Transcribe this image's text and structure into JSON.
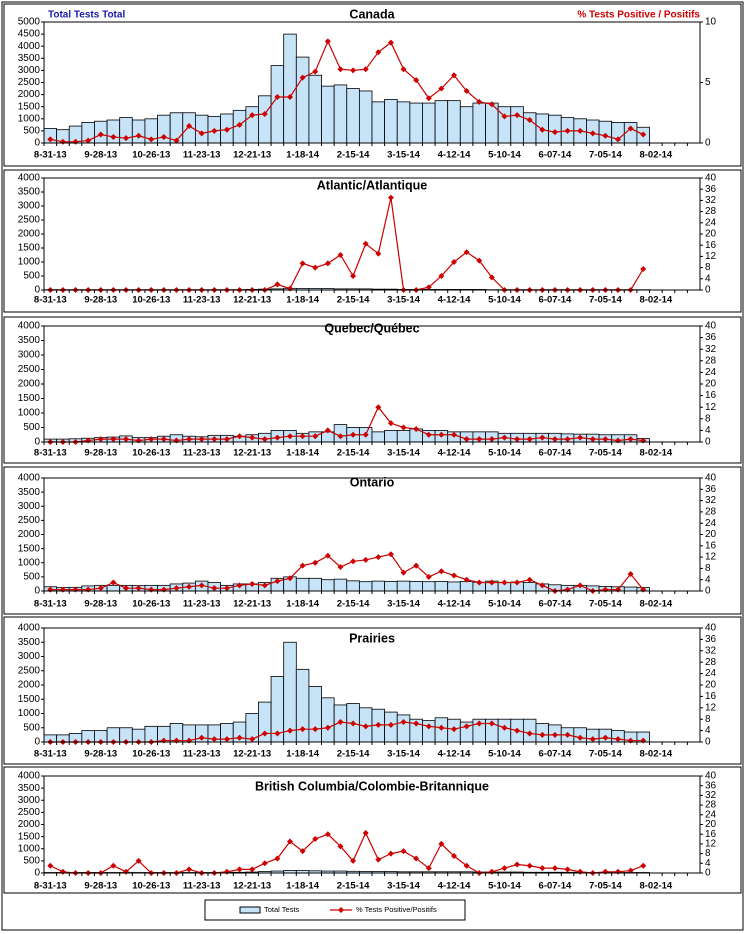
{
  "legend": [
    "Total Tests",
    "% Tests Positive/Positifs"
  ],
  "chart_data": [
    {
      "type": "bar",
      "title": "Canada",
      "y_label": "Total Tests Total",
      "y2_label": "% Tests Positive / Positifs",
      "categories": [
        "8-31-13",
        null,
        null,
        null,
        "9-28-13",
        null,
        null,
        null,
        "10-26-13",
        null,
        null,
        null,
        "11-23-13",
        null,
        null,
        null,
        "12-21-13",
        null,
        null,
        null,
        "1-18-14",
        null,
        null,
        null,
        "2-15-14",
        null,
        null,
        null,
        "3-15-14",
        null,
        null,
        null,
        "4-12-14",
        null,
        null,
        null,
        "5-10-14",
        null,
        null,
        null,
        "6-07-14",
        null,
        null,
        null,
        "7-05-14",
        null,
        null,
        null,
        "8-02-14",
        null,
        null,
        null
      ],
      "ylim": [
        0,
        5000
      ],
      "yticks": [
        0,
        500,
        1000,
        1500,
        2000,
        2500,
        3000,
        3500,
        4000,
        4500,
        5000
      ],
      "y2lim": [
        0,
        10
      ],
      "y2ticks": [
        0,
        5,
        10
      ],
      "series": [
        {
          "type": "bar",
          "color": "#c6e3f7",
          "values": [
            600,
            550,
            700,
            850,
            900,
            950,
            1050,
            950,
            1000,
            1150,
            1250,
            1250,
            1150,
            1100,
            1200,
            1350,
            1500,
            1950,
            3200,
            4500,
            3550,
            2800,
            2350,
            2400,
            2250,
            2150,
            1700,
            1800,
            1700,
            1650,
            1650,
            1750,
            1750,
            1500,
            1650,
            1650,
            1500,
            1500,
            1250,
            1200,
            1150,
            1050,
            1000,
            950,
            900,
            850,
            850,
            650,
            null,
            null,
            null,
            null
          ]
        },
        {
          "type": "line",
          "axis": "y2",
          "color": "#cc0000",
          "values": [
            0.3,
            0.1,
            0.1,
            0.2,
            0.7,
            0.5,
            0.4,
            0.6,
            0.3,
            0.5,
            0.2,
            1.4,
            0.8,
            1.0,
            1.1,
            1.5,
            2.3,
            2.4,
            3.8,
            3.8,
            5.4,
            5.9,
            8.4,
            6.1,
            6.0,
            6.1,
            7.5,
            8.3,
            6.1,
            5.2,
            3.7,
            4.5,
            5.6,
            4.3,
            3.4,
            3.2,
            2.2,
            2.3,
            1.9,
            1.1,
            0.9,
            1.0,
            1.0,
            0.8,
            0.6,
            0.3,
            1.2,
            0.7,
            null,
            null,
            null,
            null
          ]
        }
      ]
    },
    {
      "type": "bar",
      "title": "Atlantic/Atlantique",
      "categories": [
        "8-31-13",
        null,
        null,
        null,
        "9-28-13",
        null,
        null,
        null,
        "10-26-13",
        null,
        null,
        null,
        "11-23-13",
        null,
        null,
        null,
        "12-21-13",
        null,
        null,
        null,
        "1-18-14",
        null,
        null,
        null,
        "2-15-14",
        null,
        null,
        null,
        "3-15-14",
        null,
        null,
        null,
        "4-12-14",
        null,
        null,
        null,
        "5-10-14",
        null,
        null,
        null,
        "6-07-14",
        null,
        null,
        null,
        "7-05-14",
        null,
        null,
        null,
        "8-02-14",
        null,
        null,
        null
      ],
      "ylim": [
        0,
        4000
      ],
      "yticks": [
        0,
        500,
        1000,
        1500,
        2000,
        2500,
        3000,
        3500,
        4000
      ],
      "y2lim": [
        0,
        40
      ],
      "y2ticks": [
        0,
        4,
        8,
        12,
        16,
        20,
        24,
        28,
        32,
        36,
        40
      ],
      "series": [
        {
          "type": "bar",
          "color": "#c6e3f7",
          "values": [
            10,
            10,
            10,
            10,
            10,
            10,
            10,
            10,
            10,
            10,
            10,
            10,
            10,
            10,
            10,
            10,
            20,
            30,
            40,
            60,
            50,
            50,
            50,
            40,
            40,
            40,
            30,
            30,
            20,
            20,
            20,
            20,
            20,
            20,
            20,
            10,
            10,
            10,
            10,
            10,
            10,
            10,
            10,
            10,
            10,
            10,
            10,
            10,
            null,
            null,
            null,
            null
          ]
        },
        {
          "type": "line",
          "axis": "y2",
          "color": "#cc0000",
          "values": [
            0,
            0,
            0,
            0,
            0,
            0,
            0,
            0,
            0,
            0,
            0,
            0,
            0,
            0,
            0,
            0,
            0,
            0,
            2,
            0.5,
            9.5,
            8,
            9.5,
            12.5,
            5,
            16.5,
            13,
            33,
            0,
            0,
            1,
            5,
            10,
            13.5,
            10.5,
            4.5,
            0,
            0,
            0,
            0,
            0,
            0,
            0,
            0,
            0,
            0,
            0,
            7.5,
            null,
            null,
            null,
            null
          ]
        }
      ]
    },
    {
      "type": "bar",
      "title": "Quebec/Québec",
      "categories": [
        "8-31-13",
        null,
        null,
        null,
        "9-28-13",
        null,
        null,
        null,
        "10-26-13",
        null,
        null,
        null,
        "11-23-13",
        null,
        null,
        null,
        "12-21-13",
        null,
        null,
        null,
        "1-18-14",
        null,
        null,
        null,
        "2-15-14",
        null,
        null,
        null,
        "3-15-14",
        null,
        null,
        null,
        "4-12-14",
        null,
        null,
        null,
        "5-10-14",
        null,
        null,
        null,
        "6-07-14",
        null,
        null,
        null,
        "7-05-14",
        null,
        null,
        null,
        "8-02-14",
        null,
        null,
        null
      ],
      "ylim": [
        0,
        4000
      ],
      "yticks": [
        0,
        500,
        1000,
        1500,
        2000,
        2500,
        3000,
        3500,
        4000
      ],
      "y2lim": [
        0,
        40
      ],
      "y2ticks": [
        0,
        4,
        8,
        12,
        16,
        20,
        24,
        28,
        32,
        36,
        40
      ],
      "series": [
        {
          "type": "bar",
          "color": "#c6e3f7",
          "values": [
            100,
            100,
            110,
            130,
            150,
            170,
            210,
            150,
            150,
            200,
            250,
            200,
            180,
            230,
            230,
            200,
            250,
            300,
            400,
            400,
            300,
            350,
            350,
            600,
            500,
            500,
            350,
            400,
            400,
            450,
            400,
            400,
            350,
            350,
            350,
            350,
            300,
            300,
            300,
            300,
            300,
            280,
            270,
            270,
            250,
            250,
            250,
            120,
            null,
            null,
            null,
            null
          ]
        },
        {
          "type": "line",
          "axis": "y2",
          "color": "#cc0000",
          "values": [
            0,
            0,
            0,
            0.5,
            1,
            1,
            1,
            0.5,
            1,
            1,
            0.5,
            1,
            1,
            1,
            1,
            2,
            1.5,
            1,
            1.5,
            2,
            2,
            2,
            4,
            2,
            2.5,
            2.5,
            12,
            6.5,
            5,
            4.5,
            2.5,
            2.5,
            2.5,
            1,
            1,
            1,
            1.5,
            1,
            1,
            1.5,
            1,
            1,
            1.5,
            1,
            1,
            0.5,
            1,
            0.5,
            null,
            null,
            null,
            null
          ]
        }
      ]
    },
    {
      "type": "bar",
      "title": "Ontario",
      "categories": [
        "8-31-13",
        null,
        null,
        null,
        "9-28-13",
        null,
        null,
        null,
        "10-26-13",
        null,
        null,
        null,
        "11-23-13",
        null,
        null,
        null,
        "12-21-13",
        null,
        null,
        null,
        "1-18-14",
        null,
        null,
        null,
        "2-15-14",
        null,
        null,
        null,
        "3-15-14",
        null,
        null,
        null,
        "4-12-14",
        null,
        null,
        null,
        "5-10-14",
        null,
        null,
        null,
        "6-07-14",
        null,
        null,
        null,
        "7-05-14",
        null,
        null,
        null,
        "8-02-14",
        null,
        null,
        null
      ],
      "ylim": [
        0,
        4000
      ],
      "yticks": [
        0,
        500,
        1000,
        1500,
        2000,
        2500,
        3000,
        3500,
        4000
      ],
      "y2lim": [
        0,
        40
      ],
      "y2ticks": [
        0,
        4,
        8,
        12,
        16,
        20,
        24,
        28,
        32,
        36,
        40
      ],
      "series": [
        {
          "type": "bar",
          "color": "#c6e3f7",
          "values": [
            150,
            120,
            130,
            180,
            200,
            200,
            200,
            190,
            200,
            200,
            250,
            280,
            350,
            300,
            200,
            250,
            250,
            300,
            450,
            500,
            450,
            450,
            400,
            420,
            360,
            330,
            350,
            340,
            350,
            340,
            330,
            340,
            320,
            340,
            310,
            350,
            300,
            320,
            300,
            250,
            220,
            200,
            200,
            180,
            160,
            150,
            140,
            120,
            null,
            null,
            null,
            null
          ]
        },
        {
          "type": "line",
          "axis": "y2",
          "color": "#cc0000",
          "values": [
            0.5,
            0.5,
            0.5,
            0.5,
            1,
            3,
            1,
            1,
            0.5,
            0.5,
            1,
            1.5,
            2,
            1,
            1,
            2,
            2.5,
            2,
            3.5,
            4.5,
            9,
            10,
            12.5,
            8.5,
            10.5,
            11,
            12,
            13,
            6.5,
            9,
            5,
            7,
            5.5,
            4,
            3,
            3,
            3,
            3,
            4,
            2,
            0,
            0.5,
            2,
            0,
            0.5,
            0.5,
            6,
            0.5,
            null,
            null,
            null,
            null
          ]
        }
      ]
    },
    {
      "type": "bar",
      "title": "Prairies",
      "categories": [
        "8-31-13",
        null,
        null,
        null,
        "9-28-13",
        null,
        null,
        null,
        "10-26-13",
        null,
        null,
        null,
        "11-23-13",
        null,
        null,
        null,
        "12-21-13",
        null,
        null,
        null,
        "1-18-14",
        null,
        null,
        null,
        "2-15-14",
        null,
        null,
        null,
        "3-15-14",
        null,
        null,
        null,
        "4-12-14",
        null,
        null,
        null,
        "5-10-14",
        null,
        null,
        null,
        "6-07-14",
        null,
        null,
        null,
        "7-05-14",
        null,
        null,
        null,
        "8-02-14",
        null,
        null,
        null
      ],
      "ylim": [
        0,
        4000
      ],
      "yticks": [
        0,
        500,
        1000,
        1500,
        2000,
        2500,
        3000,
        3500,
        4000
      ],
      "y2lim": [
        0,
        40
      ],
      "y2ticks": [
        0,
        4,
        8,
        12,
        16,
        20,
        24,
        28,
        32,
        36,
        40
      ],
      "series": [
        {
          "type": "bar",
          "color": "#c6e3f7",
          "values": [
            250,
            250,
            300,
            400,
            400,
            500,
            500,
            450,
            550,
            550,
            650,
            600,
            600,
            600,
            650,
            700,
            1000,
            1400,
            2300,
            3500,
            2550,
            1950,
            1550,
            1300,
            1350,
            1200,
            1150,
            1050,
            950,
            800,
            750,
            850,
            800,
            700,
            800,
            800,
            800,
            800,
            800,
            650,
            600,
            500,
            500,
            450,
            450,
            400,
            350,
            350,
            null,
            null,
            null,
            null
          ]
        },
        {
          "type": "line",
          "axis": "y2",
          "color": "#cc0000",
          "values": [
            0,
            0,
            0,
            0,
            0,
            0,
            0,
            0,
            0,
            0.5,
            0.5,
            0.5,
            1.5,
            1,
            1,
            1.5,
            1,
            3,
            3,
            4,
            4.5,
            4.5,
            5,
            7,
            6.5,
            5.5,
            6,
            6,
            7,
            6.5,
            5.5,
            5,
            4.5,
            5.5,
            6.5,
            6.5,
            5,
            4,
            3,
            2.5,
            2.5,
            2.5,
            1.5,
            1,
            1.5,
            1,
            0.5,
            0.5,
            null,
            null,
            null,
            null
          ]
        }
      ]
    },
    {
      "type": "bar",
      "title": "British Columbia/Colombie-Britannique",
      "categories": [
        "8-31-13",
        null,
        null,
        null,
        "9-28-13",
        null,
        null,
        null,
        "10-26-13",
        null,
        null,
        null,
        "11-23-13",
        null,
        null,
        null,
        "12-21-13",
        null,
        null,
        null,
        "1-18-14",
        null,
        null,
        null,
        "2-15-14",
        null,
        null,
        null,
        "3-15-14",
        null,
        null,
        null,
        "4-12-14",
        null,
        null,
        null,
        "5-10-14",
        null,
        null,
        null,
        "6-07-14",
        null,
        null,
        null,
        "7-05-14",
        null,
        null,
        null,
        "8-02-14",
        null,
        null,
        null
      ],
      "ylim": [
        0,
        4000
      ],
      "yticks": [
        0,
        500,
        1000,
        1500,
        2000,
        2500,
        3000,
        3500,
        4000
      ],
      "y2lim": [
        0,
        40
      ],
      "y2ticks": [
        0,
        4,
        8,
        12,
        16,
        20,
        24,
        28,
        32,
        36,
        40
      ],
      "series": [
        {
          "type": "bar",
          "color": "#c6e3f7",
          "values": [
            20,
            20,
            20,
            20,
            20,
            20,
            20,
            20,
            20,
            20,
            20,
            20,
            20,
            20,
            30,
            30,
            40,
            60,
            80,
            100,
            100,
            90,
            80,
            80,
            70,
            60,
            60,
            60,
            50,
            50,
            50,
            50,
            50,
            50,
            40,
            40,
            40,
            40,
            30,
            30,
            30,
            30,
            30,
            20,
            20,
            20,
            20,
            20,
            null,
            null,
            null,
            null
          ]
        },
        {
          "type": "line",
          "axis": "y2",
          "color": "#cc0000",
          "values": [
            3,
            0.5,
            0,
            0,
            0,
            3,
            0.5,
            5,
            0,
            0,
            0,
            1.5,
            0,
            0,
            0.5,
            1.5,
            1.5,
            4,
            6,
            13,
            9,
            14,
            16,
            11,
            5,
            16.5,
            5.5,
            8,
            9,
            6,
            2,
            12,
            7,
            3,
            0,
            0.5,
            2,
            3.5,
            3,
            2,
            2,
            1.5,
            0.5,
            0,
            0.5,
            0.5,
            1,
            3,
            null,
            null,
            null,
            null
          ]
        }
      ]
    }
  ]
}
